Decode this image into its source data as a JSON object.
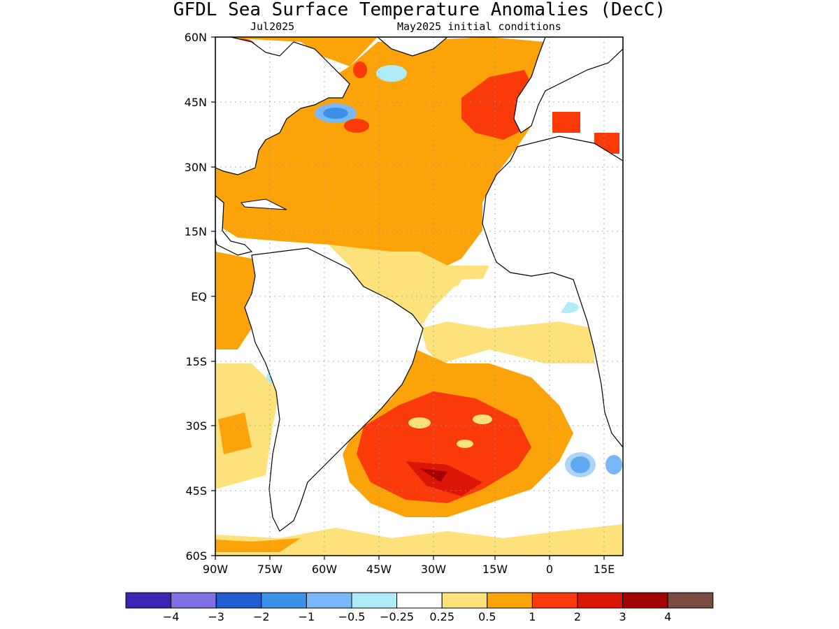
{
  "title": "GFDL Sea Surface Temperature Anomalies (DecC)",
  "subtitle_left": "Jul2025",
  "subtitle_right": "May2025 initial conditions",
  "lat_labels": [
    "60N",
    "45N",
    "30N",
    "15N",
    "EQ",
    "15S",
    "30S",
    "45S",
    "60S"
  ],
  "lon_labels": [
    "90W",
    "75W",
    "60W",
    "45W",
    "30W",
    "15W",
    "0",
    "15E"
  ],
  "colorbar": {
    "colors": [
      "#3a24b4",
      "#8070e6",
      "#1f5cd0",
      "#3b91ea",
      "#78b8f6",
      "#b0ecf8",
      "#ffffff",
      "#fde27c",
      "#fca30a",
      "#fb3a0a",
      "#dc1606",
      "#a40303",
      "#7a4b40"
    ],
    "labels": [
      "−4",
      "−3",
      "−2",
      "−1",
      "−0.5",
      "−0.25",
      "0.25",
      "0.5",
      "1",
      "2",
      "3",
      "4"
    ]
  }
}
